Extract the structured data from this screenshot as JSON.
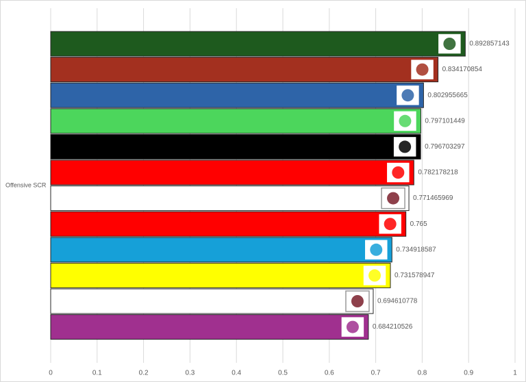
{
  "chart_data": {
    "type": "bar",
    "orientation": "horizontal",
    "y_label": "Offensive SCR",
    "categories": [
      null,
      null,
      null,
      null,
      null,
      null,
      null,
      null,
      null,
      null,
      null,
      null
    ],
    "values": [
      0.892857143,
      0.834170854,
      0.802955665,
      0.797101449,
      0.796703297,
      0.782178218,
      0.771465969,
      0.765,
      0.734918587,
      0.731578947,
      0.694610778,
      0.684210526
    ],
    "colors": [
      "#1e5a1e",
      "#a3301f",
      "#2e64a8",
      "#4cd65c",
      "#000000",
      "#ff0000",
      "#ffffff",
      "#ff0000",
      "#16a0d8",
      "#ffff00",
      "#ffffff",
      "#a0308f"
    ],
    "xlim": [
      0,
      1
    ],
    "xticks": [
      0,
      0.1,
      0.2,
      0.3,
      0.4,
      0.5,
      0.6,
      0.7,
      0.8,
      0.9,
      1
    ],
    "grid": true
  }
}
